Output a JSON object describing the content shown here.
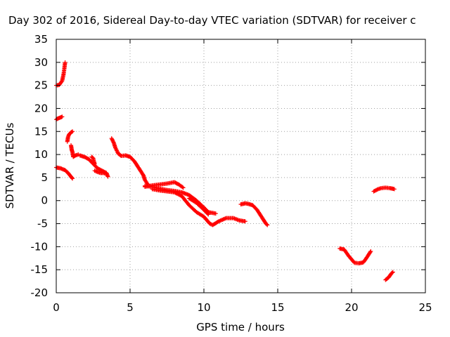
{
  "chart_data": {
    "type": "scatter",
    "title": "Day 302 of 2016, Sidereal Day-to-day VTEC variation (SDTVAR) for receiver c",
    "xlabel": "GPS time / hours",
    "ylabel": "SDTVAR / TECUs",
    "xlim": [
      0,
      25
    ],
    "ylim": [
      -20,
      35
    ],
    "xticks": [
      0,
      5,
      10,
      15,
      20,
      25
    ],
    "yticks": [
      -20,
      -15,
      -10,
      -5,
      0,
      5,
      10,
      15,
      20,
      25,
      30,
      35
    ],
    "grid": true,
    "marker": "plus",
    "series_color": "#ff0000",
    "segments": [
      [
        [
          0.0,
          25.0
        ],
        [
          0.2,
          25.1
        ],
        [
          0.4,
          26.0
        ],
        [
          0.5,
          27.5
        ],
        [
          0.55,
          28.7
        ],
        [
          0.6,
          30.0
        ]
      ],
      [
        [
          0.0,
          17.6
        ],
        [
          0.1,
          17.8
        ],
        [
          0.25,
          18.0
        ],
        [
          0.4,
          18.2
        ]
      ],
      [
        [
          0.0,
          7.2
        ],
        [
          0.3,
          7.0
        ],
        [
          0.6,
          6.6
        ],
        [
          0.8,
          6.0
        ],
        [
          1.0,
          5.2
        ],
        [
          1.1,
          4.8
        ]
      ],
      [
        [
          0.75,
          12.8
        ],
        [
          0.8,
          13.8
        ],
        [
          0.85,
          14.2
        ],
        [
          0.9,
          14.5
        ],
        [
          1.0,
          14.8
        ],
        [
          1.1,
          15.0
        ]
      ],
      [
        [
          1.0,
          12.0
        ],
        [
          1.05,
          11.0
        ],
        [
          1.1,
          10.5
        ],
        [
          1.15,
          9.5
        ],
        [
          1.3,
          9.8
        ],
        [
          1.5,
          10.0
        ]
      ],
      [
        [
          1.6,
          9.8
        ],
        [
          1.9,
          9.5
        ],
        [
          2.2,
          9.0
        ],
        [
          2.5,
          8.0
        ],
        [
          2.8,
          7.0
        ],
        [
          3.1,
          6.5
        ],
        [
          3.4,
          6.0
        ],
        [
          3.5,
          5.2
        ]
      ],
      [
        [
          2.4,
          9.5
        ],
        [
          2.5,
          9.2
        ],
        [
          2.55,
          8.5
        ],
        [
          2.6,
          8.0
        ]
      ],
      [
        [
          2.6,
          6.5
        ],
        [
          2.8,
          6.2
        ],
        [
          3.0,
          6.0
        ],
        [
          3.2,
          6.0
        ],
        [
          3.4,
          5.8
        ]
      ],
      [
        [
          3.75,
          13.5
        ],
        [
          3.9,
          12.5
        ],
        [
          4.0,
          11.5
        ],
        [
          4.2,
          10.2
        ],
        [
          4.4,
          9.7
        ],
        [
          4.7,
          9.8
        ],
        [
          5.0,
          9.5
        ],
        [
          5.3,
          8.5
        ],
        [
          5.6,
          7.0
        ],
        [
          5.9,
          5.5
        ],
        [
          6.0,
          4.5
        ],
        [
          6.2,
          3.5
        ]
      ],
      [
        [
          6.0,
          3.0
        ],
        [
          6.5,
          3.3
        ],
        [
          7.0,
          3.5
        ],
        [
          7.5,
          3.7
        ],
        [
          8.0,
          4.0
        ],
        [
          8.3,
          3.5
        ],
        [
          8.6,
          2.8
        ]
      ],
      [
        [
          6.0,
          3.2
        ],
        [
          6.5,
          3.0
        ],
        [
          7.0,
          2.6
        ],
        [
          7.5,
          2.3
        ],
        [
          8.0,
          2.1
        ],
        [
          8.5,
          1.8
        ],
        [
          9.0,
          1.2
        ],
        [
          9.5,
          0.0
        ],
        [
          10.0,
          -1.5
        ],
        [
          10.3,
          -2.5
        ],
        [
          10.8,
          -2.8
        ]
      ],
      [
        [
          6.5,
          2.5
        ],
        [
          7.0,
          2.2
        ],
        [
          7.5,
          2.0
        ],
        [
          8.0,
          1.8
        ],
        [
          8.5,
          1.0
        ],
        [
          9.0,
          -1.0
        ],
        [
          9.5,
          -2.5
        ],
        [
          10.0,
          -3.5
        ],
        [
          10.4,
          -5.0
        ],
        [
          10.6,
          -5.3
        ],
        [
          11.0,
          -4.5
        ],
        [
          11.5,
          -3.8
        ],
        [
          12.0,
          -3.8
        ],
        [
          12.4,
          -4.3
        ],
        [
          12.8,
          -4.5
        ]
      ],
      [
        [
          9.0,
          0.5
        ],
        [
          9.5,
          -0.5
        ],
        [
          10.0,
          -2.0
        ],
        [
          10.3,
          -3.0
        ]
      ],
      [
        [
          12.5,
          -0.8
        ],
        [
          12.8,
          -0.6
        ],
        [
          13.0,
          -0.7
        ],
        [
          13.3,
          -1.0
        ],
        [
          13.6,
          -2.0
        ],
        [
          13.9,
          -3.5
        ],
        [
          14.2,
          -5.0
        ],
        [
          14.3,
          -5.3
        ]
      ],
      [
        [
          19.2,
          -10.4
        ],
        [
          19.5,
          -10.6
        ],
        [
          19.8,
          -12.0
        ],
        [
          20.2,
          -13.5
        ],
        [
          20.5,
          -13.6
        ],
        [
          20.8,
          -13.4
        ],
        [
          21.0,
          -12.5
        ],
        [
          21.3,
          -11.0
        ]
      ],
      [
        [
          21.5,
          2.0
        ],
        [
          21.8,
          2.5
        ],
        [
          22.0,
          2.7
        ],
        [
          22.3,
          2.8
        ],
        [
          22.6,
          2.7
        ],
        [
          22.9,
          2.5
        ]
      ],
      [
        [
          22.3,
          -17.2
        ],
        [
          22.5,
          -16.7
        ],
        [
          22.7,
          -15.8
        ],
        [
          22.8,
          -15.5
        ]
      ]
    ]
  }
}
